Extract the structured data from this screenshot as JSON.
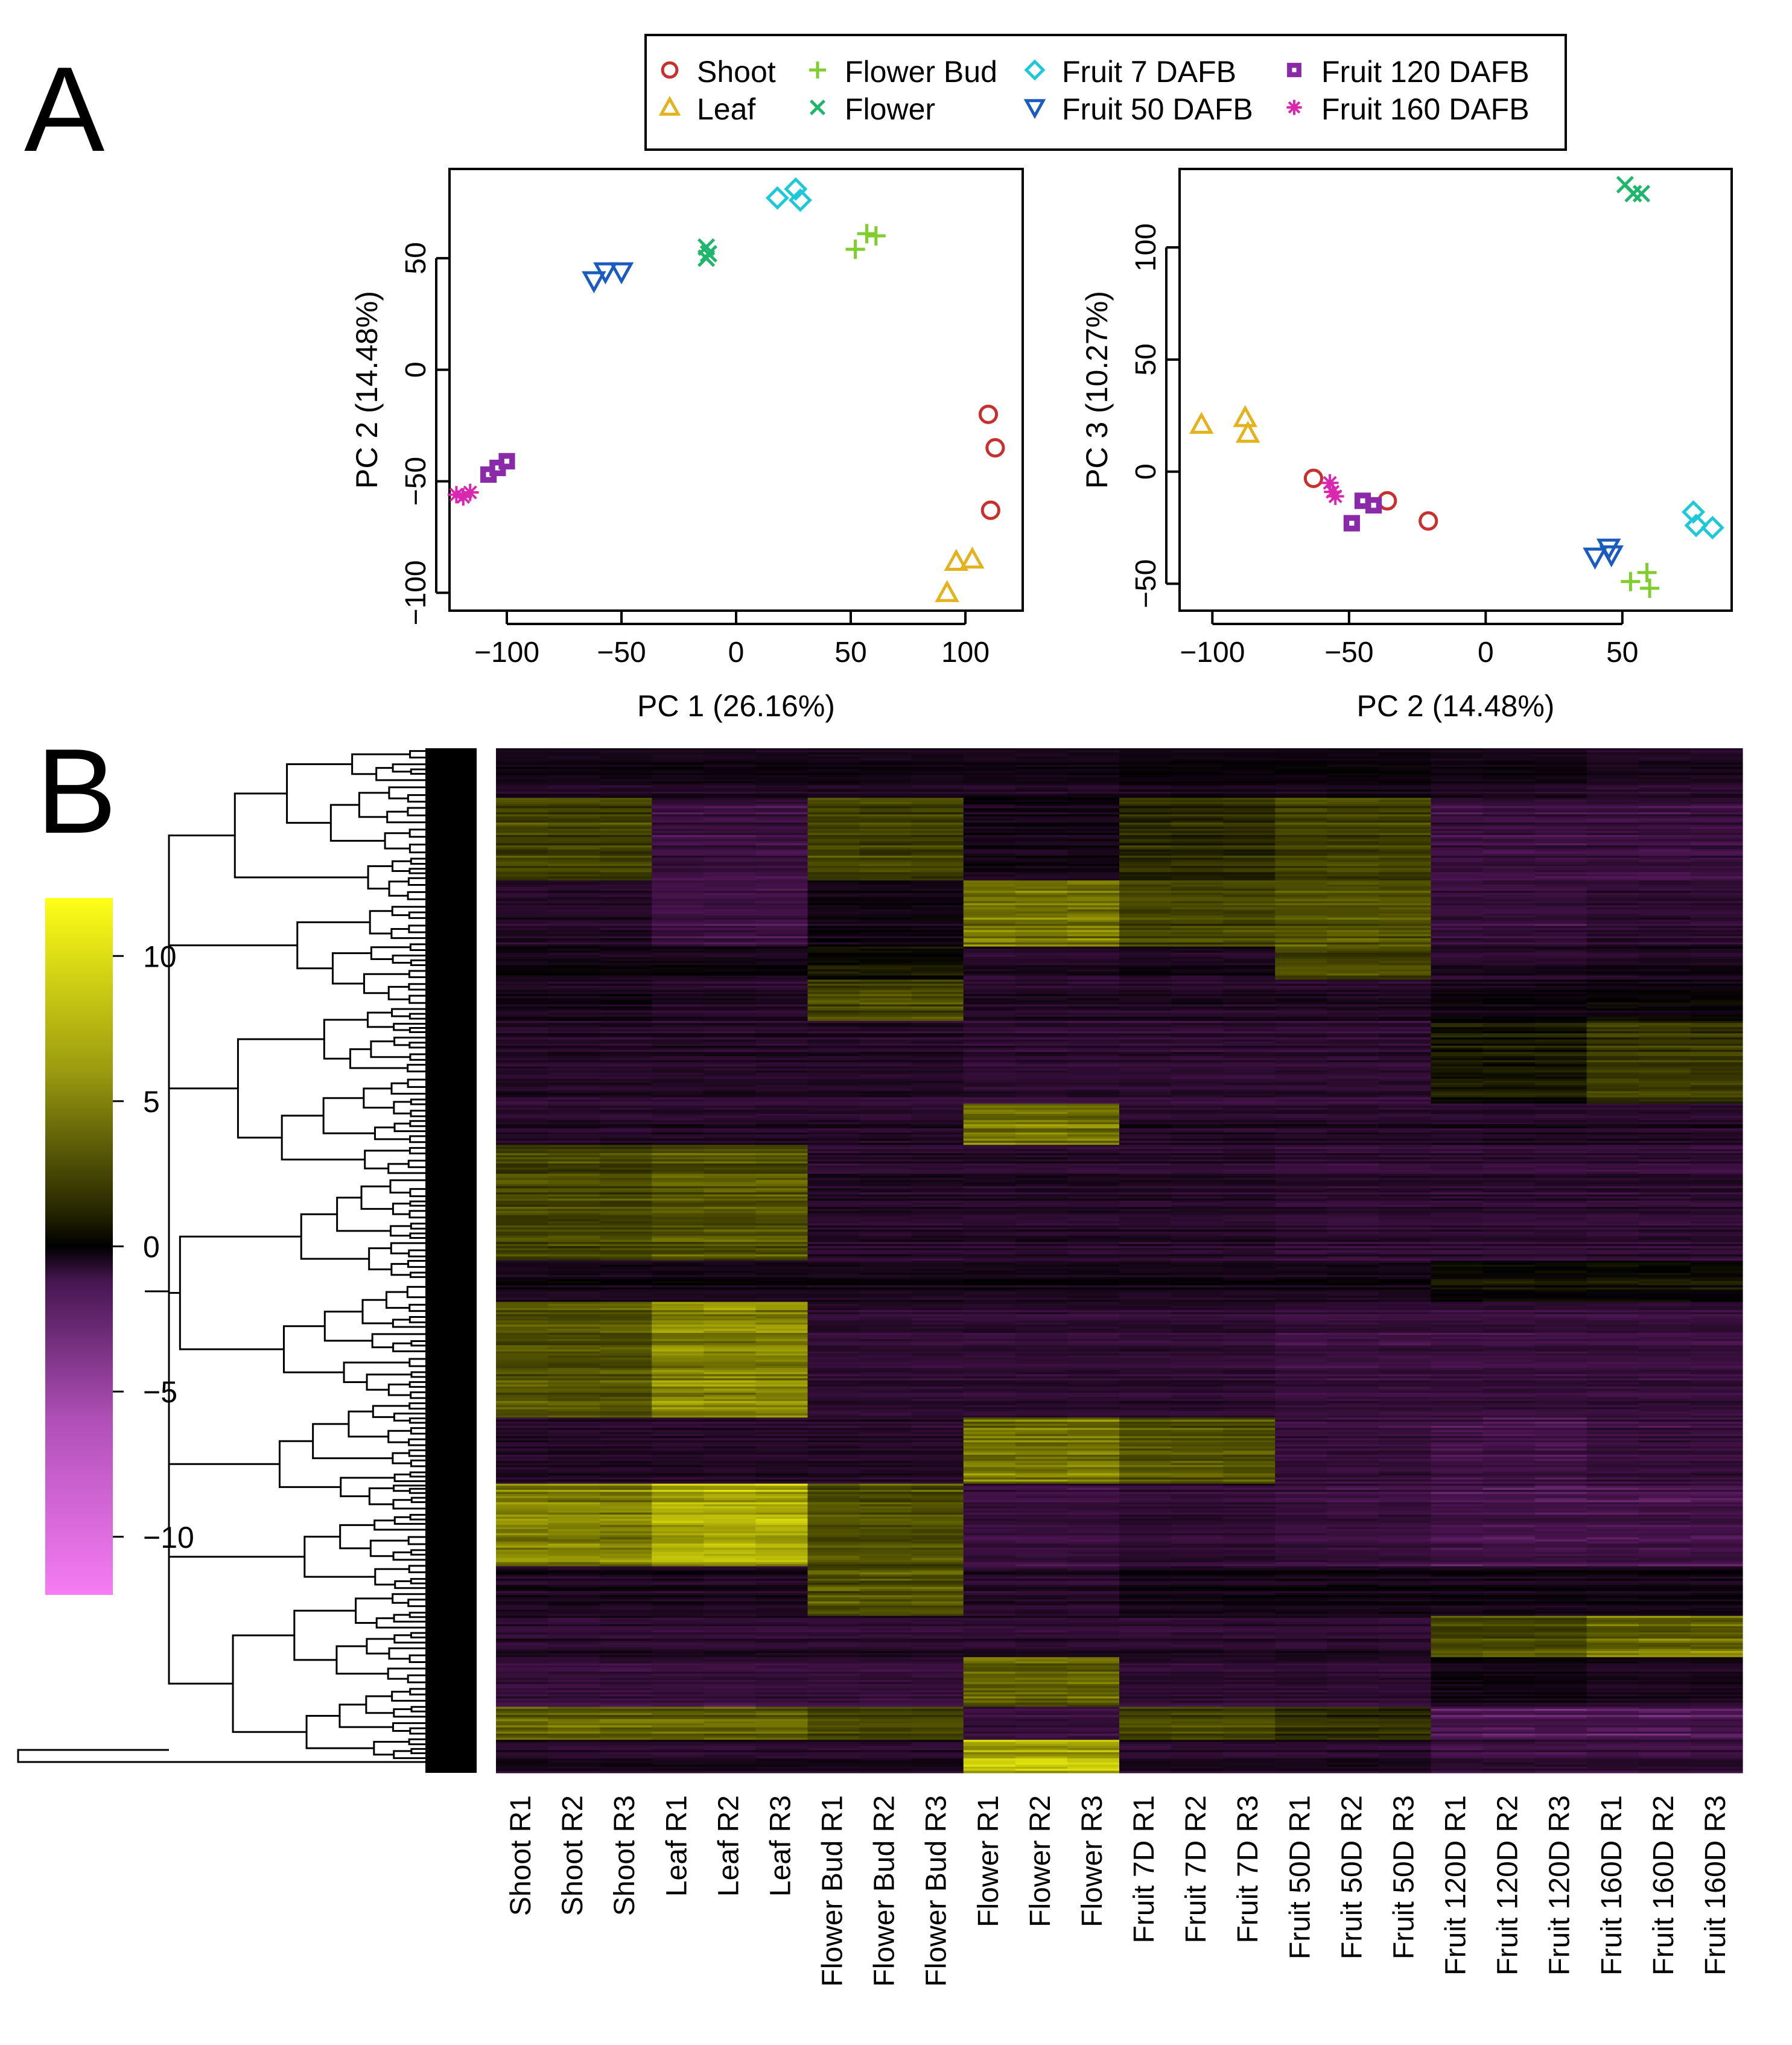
{
  "panel_labels": {
    "a": "A",
    "b": "B"
  },
  "legend": {
    "entries": [
      {
        "label": "Shoot",
        "marker": "circle",
        "color": "#c8302f"
      },
      {
        "label": "Leaf",
        "marker": "triangle-up",
        "color": "#e3b21c"
      },
      {
        "label": "Flower Bud",
        "marker": "plus",
        "color": "#7fce2c"
      },
      {
        "label": "Flower",
        "marker": "x",
        "color": "#1fb66b"
      },
      {
        "label": "Fruit 7 DAFB",
        "marker": "diamond",
        "color": "#1ec8d8"
      },
      {
        "label": "Fruit 50 DAFB",
        "marker": "triangle-down",
        "color": "#1a5bc0"
      },
      {
        "label": "Fruit 120 DAFB",
        "marker": "square-dot",
        "color": "#8a2aa8"
      },
      {
        "label": "Fruit 160 DAFB",
        "marker": "star",
        "color": "#d927b0"
      }
    ]
  },
  "chart_data": [
    {
      "type": "scatter",
      "xlabel": "PC 1 (26.16%)",
      "ylabel": "PC 2 (14.48%)",
      "xlim": [
        -125,
        125
      ],
      "ylim": [
        -108,
        90
      ],
      "xticks": [
        -100,
        -50,
        0,
        50,
        100
      ],
      "yticks": [
        -100,
        -50,
        0,
        50
      ],
      "tick_labels_x": [
        "−100",
        "−50",
        "0",
        "50",
        "100"
      ],
      "tick_labels_y": [
        "−100",
        "−50",
        "0",
        "50"
      ],
      "series": [
        {
          "name": "Shoot",
          "points": [
            [
              110,
              -20
            ],
            [
              113,
              -35
            ],
            [
              111,
              -63
            ]
          ]
        },
        {
          "name": "Leaf",
          "points": [
            [
              92,
              -100
            ],
            [
              96,
              -86
            ],
            [
              103,
              -85
            ]
          ]
        },
        {
          "name": "Flower Bud",
          "points": [
            [
              52,
              54
            ],
            [
              57,
              61
            ],
            [
              61,
              60
            ]
          ]
        },
        {
          "name": "Flower",
          "points": [
            [
              -13,
              55
            ],
            [
              -13,
              50
            ],
            [
              -12,
              52
            ]
          ]
        },
        {
          "name": "Fruit 7 DAFB",
          "points": [
            [
              18,
              77
            ],
            [
              26,
              81
            ],
            [
              28,
              76
            ]
          ]
        },
        {
          "name": "Fruit 50 DAFB",
          "points": [
            [
              -62,
              40
            ],
            [
              -57,
              44
            ],
            [
              -50,
              44
            ]
          ]
        },
        {
          "name": "Fruit 120 DAFB",
          "points": [
            [
              -108,
              -47
            ],
            [
              -104,
              -44
            ],
            [
              -100,
              -41
            ]
          ]
        },
        {
          "name": "Fruit 160 DAFB",
          "points": [
            [
              -122,
              -56
            ],
            [
              -119,
              -57
            ],
            [
              -116,
              -55
            ]
          ]
        }
      ]
    },
    {
      "type": "scatter",
      "xlabel": "PC 2 (14.48%)",
      "ylabel": "PC 3 (10.27%)",
      "xlim": [
        -112,
        90
      ],
      "ylim": [
        -62,
        135
      ],
      "xticks": [
        -100,
        -50,
        0,
        50
      ],
      "yticks": [
        -50,
        0,
        50,
        100
      ],
      "tick_labels_x": [
        "−100",
        "−50",
        "0",
        "50"
      ],
      "tick_labels_y": [
        "−50",
        "0",
        "50",
        "100"
      ],
      "series": [
        {
          "name": "Shoot",
          "points": [
            [
              -63,
              -3
            ],
            [
              -36,
              -13
            ],
            [
              -21,
              -22
            ]
          ]
        },
        {
          "name": "Leaf",
          "points": [
            [
              -104,
              21
            ],
            [
              -88,
              24
            ],
            [
              -87,
              17
            ]
          ]
        },
        {
          "name": "Flower Bud",
          "points": [
            [
              53,
              -49
            ],
            [
              59,
              -45
            ],
            [
              60,
              -52
            ]
          ]
        },
        {
          "name": "Flower",
          "points": [
            [
              51,
              128
            ],
            [
              54,
              124
            ],
            [
              57,
              124
            ]
          ]
        },
        {
          "name": "Fruit 7 DAFB",
          "points": [
            [
              76,
              -18
            ],
            [
              77,
              -24
            ],
            [
              83,
              -25
            ]
          ]
        },
        {
          "name": "Fruit 50 DAFB",
          "points": [
            [
              40,
              -38
            ],
            [
              45,
              -34
            ],
            [
              46,
              -37
            ]
          ]
        },
        {
          "name": "Fruit 120 DAFB",
          "points": [
            [
              -49,
              -23
            ],
            [
              -45,
              -13
            ],
            [
              -41,
              -15
            ]
          ]
        },
        {
          "name": "Fruit 160 DAFB",
          "points": [
            [
              -57,
              -5
            ],
            [
              -56,
              -9
            ],
            [
              -55,
              -11
            ]
          ]
        }
      ]
    },
    {
      "type": "heatmap",
      "colorbar": {
        "min": -12,
        "max": 12,
        "ticks": [
          10,
          5,
          0,
          -5,
          -10
        ],
        "tick_labels": [
          "10",
          "5",
          "0",
          "−5",
          "−10"
        ]
      },
      "colors": {
        "low": "#f07af0",
        "mid_low": "#4a1450",
        "zero": "#000000",
        "mid_high": "#5a5a00",
        "high": "#ffff10"
      },
      "columns": [
        "Shoot R1",
        "Shoot R2",
        "Shoot R3",
        "Leaf R1",
        "Leaf R2",
        "Leaf R3",
        "Flower Bud R1",
        "Flower Bud R2",
        "Flower Bud R3",
        "Flower R1",
        "Flower R2",
        "Flower R3",
        "Fruit 7D R1",
        "Fruit 7D R2",
        "Fruit 7D R3",
        "Fruit 50D  R1",
        "Fruit 50D R2",
        "Fruit 50D R3",
        "Fruit 120D R1",
        "Fruit 120D R2",
        "Fruit 120D  R3",
        "Fruit 160D R1",
        "Fruit 160D R2",
        "Fruit 160D  R3"
      ],
      "row_clusters": [
        {
          "rows": 6,
          "values": [
            -1.5,
            -1.5,
            -1.5,
            -1.5,
            -1.5,
            -1.5,
            -1.5,
            -1.5,
            -1.5,
            -1.5,
            -1.5,
            -1.5,
            -1,
            -1,
            -1,
            -1,
            -1,
            -1,
            -1.5,
            -1.5,
            -1.5,
            -2,
            -2,
            -2
          ]
        },
        {
          "rows": 10,
          "values": [
            3,
            3,
            3,
            -3,
            -3,
            -3,
            3,
            3,
            3,
            -1,
            -1,
            -1,
            2,
            2,
            2,
            3,
            3,
            3,
            -3,
            -3,
            -3,
            -3,
            -3,
            -3
          ]
        },
        {
          "rows": 8,
          "values": [
            -2,
            -2,
            -2,
            -3.5,
            -3.5,
            -3.5,
            -1,
            -1,
            -1,
            4.5,
            4.5,
            4.5,
            3,
            3,
            3,
            3.5,
            3.5,
            3.5,
            -3,
            -3,
            -3,
            -2.5,
            -2.5,
            -2.5
          ]
        },
        {
          "rows": 4,
          "values": [
            -1,
            -1,
            -1,
            -1,
            -1,
            -1,
            0.5,
            0.5,
            0.5,
            -2,
            -2,
            -2,
            -1.5,
            -1.5,
            -1.5,
            3,
            3,
            3,
            -2,
            -2,
            -2,
            -1.5,
            -1.5,
            -1.5
          ]
        },
        {
          "rows": 5,
          "values": [
            -1.5,
            -1.5,
            -1.5,
            -2,
            -2,
            -2,
            3,
            3,
            3,
            -2,
            -2,
            -2,
            -2,
            -2,
            -2,
            -2,
            -2,
            -2,
            -1,
            -1,
            -1,
            -0.5,
            -0.5,
            -0.5
          ]
        },
        {
          "rows": 10,
          "values": [
            -2,
            -2,
            -2,
            -2,
            -2,
            -2,
            -2,
            -2,
            -2,
            -2.5,
            -2.5,
            -2.5,
            -2.5,
            -2.5,
            -2.5,
            -2.5,
            -2.5,
            -2.5,
            1,
            1,
            1,
            2.5,
            2.5,
            2.5
          ]
        },
        {
          "rows": 5,
          "values": [
            -2,
            -2,
            -2,
            -2,
            -2,
            -2,
            -2,
            -2,
            -2,
            4.5,
            4.5,
            4.5,
            -2,
            -2,
            -2,
            -2,
            -2,
            -2,
            -2,
            -2,
            -2,
            -2,
            -2,
            -2
          ]
        },
        {
          "rows": 14,
          "values": [
            3,
            3,
            3,
            3.5,
            3.5,
            3.5,
            -2,
            -2,
            -2,
            -2,
            -2,
            -2,
            -2,
            -2,
            -2,
            -2.5,
            -2.5,
            -2.5,
            -2.5,
            -2.5,
            -2.5,
            -2.5,
            -2.5,
            -2.5
          ]
        },
        {
          "rows": 5,
          "values": [
            -1,
            -1,
            -1,
            -1,
            -1,
            -1,
            -1,
            -1,
            -1,
            -1,
            -1,
            -1,
            -1,
            -1,
            -1,
            -1,
            -1,
            -1,
            0.5,
            0.5,
            0.5,
            0.5,
            0.5,
            0.5
          ]
        },
        {
          "rows": 14,
          "values": [
            3.5,
            3.5,
            3.5,
            5,
            5,
            5,
            -2.5,
            -2.5,
            -2.5,
            -2.5,
            -2.5,
            -2.5,
            -2.5,
            -2.5,
            -2.5,
            -3,
            -3,
            -3,
            -3,
            -3,
            -3,
            -3,
            -3,
            -3
          ]
        },
        {
          "rows": 8,
          "values": [
            -2,
            -2,
            -2,
            -2,
            -2,
            -2,
            -2,
            -2,
            -2,
            4.5,
            4.5,
            4.5,
            3.5,
            3.5,
            3.5,
            -3,
            -3,
            -3,
            -3.5,
            -3.5,
            -3.5,
            -3,
            -3,
            -3
          ]
        },
        {
          "rows": 10,
          "values": [
            5,
            5,
            5,
            6,
            6,
            6,
            3.5,
            3.5,
            3.5,
            -3,
            -3,
            -3,
            -2.5,
            -2.5,
            -2.5,
            -3,
            -3,
            -3,
            -3.5,
            -3.5,
            -3.5,
            -3.5,
            -3.5,
            -3.5
          ]
        },
        {
          "rows": 6,
          "values": [
            -1.5,
            -1.5,
            -1.5,
            -1.5,
            -1.5,
            -1.5,
            3.5,
            3.5,
            3.5,
            -2,
            -2,
            -2,
            -1,
            -1,
            -1,
            -1,
            -1,
            -1,
            -1,
            -1,
            -1,
            -1,
            -1,
            -1
          ]
        },
        {
          "rows": 5,
          "values": [
            -2,
            -2,
            -2,
            -2,
            -2,
            -2,
            -2,
            -2,
            -2,
            -2,
            -2,
            -2,
            -2,
            -2,
            -2,
            -2,
            -2,
            -2,
            3.5,
            3.5,
            3.5,
            4.5,
            4.5,
            4.5
          ]
        },
        {
          "rows": 6,
          "values": [
            -3,
            -3,
            -3,
            -3,
            -3,
            -3,
            -3,
            -3,
            -3,
            4,
            4,
            4,
            -2.5,
            -2.5,
            -2.5,
            -2.5,
            -2.5,
            -2.5,
            -1,
            -1,
            -1,
            -1.5,
            -1.5,
            -1.5
          ]
        },
        {
          "rows": 4,
          "values": [
            4,
            4,
            4,
            4,
            4,
            4,
            3,
            3,
            3,
            -3,
            -3,
            -3,
            3,
            3,
            3,
            2,
            2,
            2,
            -4,
            -4,
            -4,
            -4,
            -4,
            -4
          ]
        },
        {
          "rows": 4,
          "values": [
            -2,
            -2,
            -2,
            -2,
            -2,
            -2,
            -2,
            -2,
            -2,
            6,
            6,
            6,
            -2,
            -2,
            -2,
            -2,
            -2,
            -2,
            -3,
            -3,
            -3,
            -3,
            -3,
            -3
          ]
        }
      ]
    }
  ],
  "dendrogram_note": ""
}
